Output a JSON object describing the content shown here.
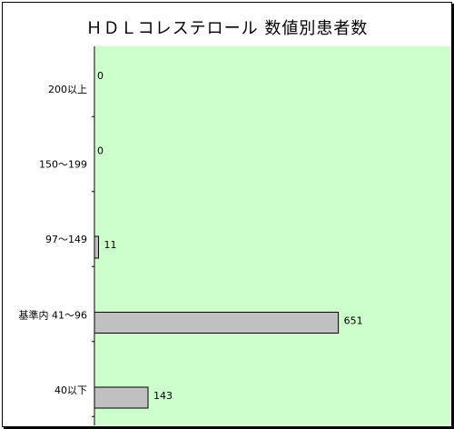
{
  "chart_data": {
    "type": "bar",
    "orientation": "horizontal",
    "title": "ＨＤＬコレステロール 数値別患者数",
    "xlabel": "",
    "ylabel": "",
    "categories": [
      "200以上",
      "150〜199",
      "97〜149",
      "基準内 41〜96",
      "40以下"
    ],
    "values": [
      0,
      0,
      11,
      651,
      143
    ],
    "xlim": [
      0,
      950
    ],
    "grid": false,
    "legend": "none",
    "plot_background": "#ccffcc",
    "bar_color": "#c0c0c0"
  }
}
